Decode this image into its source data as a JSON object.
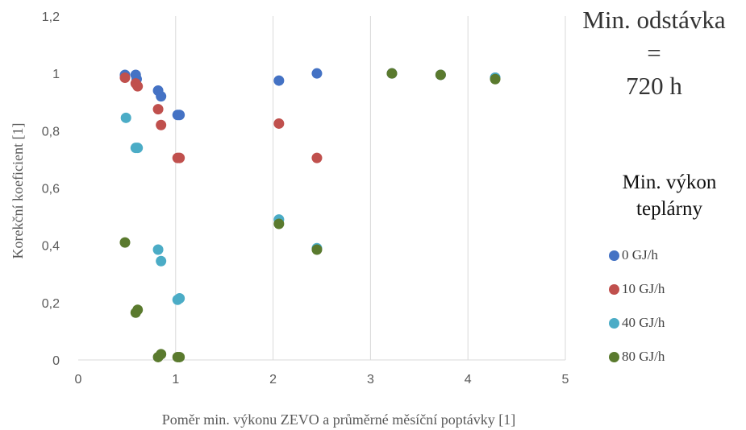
{
  "title_lines": [
    "Min. odstávka",
    "=",
    "720 h"
  ],
  "legend_title_lines": [
    "Min. výkon",
    "teplárny"
  ],
  "chart_data": {
    "type": "scatter",
    "xlabel": "Poměr min. výkonu ZEVO  a průměrné měsíční poptávky [1]",
    "ylabel": "Korekční koeficient [1]",
    "xlim": [
      0,
      5
    ],
    "ylim": [
      0,
      1.2
    ],
    "x_ticks": [
      "0",
      "1",
      "2",
      "3",
      "4",
      "5"
    ],
    "y_ticks": [
      "0",
      "0,2",
      "0,4",
      "0,6",
      "0,8",
      "1",
      "1,2"
    ],
    "grid": "vertical",
    "legend": "right",
    "series": [
      {
        "name": "0 GJ/h",
        "color": "#4472C4",
        "x": [
          0.48,
          0.59,
          0.6,
          0.82,
          0.85,
          1.02,
          1.04,
          2.06,
          2.45,
          3.22,
          3.72,
          4.28
        ],
        "y": [
          0.995,
          0.995,
          0.98,
          0.94,
          0.92,
          0.855,
          0.855,
          0.975,
          1.0,
          1.0,
          0.995,
          0.985
        ]
      },
      {
        "name": "10 GJ/h",
        "color": "#C0504D",
        "x": [
          0.48,
          0.59,
          0.61,
          0.82,
          0.85,
          1.02,
          1.04,
          2.06,
          2.45
        ],
        "y": [
          0.985,
          0.965,
          0.955,
          0.875,
          0.82,
          0.705,
          0.705,
          0.825,
          0.705
        ]
      },
      {
        "name": "40 GJ/h",
        "color": "#4BACC6",
        "x": [
          0.49,
          0.59,
          0.61,
          0.82,
          0.85,
          1.02,
          1.04,
          2.06,
          2.45,
          4.28
        ],
        "y": [
          0.845,
          0.74,
          0.74,
          0.385,
          0.345,
          0.21,
          0.215,
          0.49,
          0.39,
          0.985
        ]
      },
      {
        "name": "80 GJ/h",
        "color": "#5A7A2E",
        "x": [
          0.48,
          0.59,
          0.61,
          0.82,
          0.85,
          1.02,
          1.04,
          2.06,
          2.45,
          3.22,
          3.72,
          4.28
        ],
        "y": [
          0.41,
          0.165,
          0.175,
          0.01,
          0.02,
          0.01,
          0.01,
          0.475,
          0.385,
          1.0,
          0.995,
          0.98
        ]
      }
    ]
  }
}
